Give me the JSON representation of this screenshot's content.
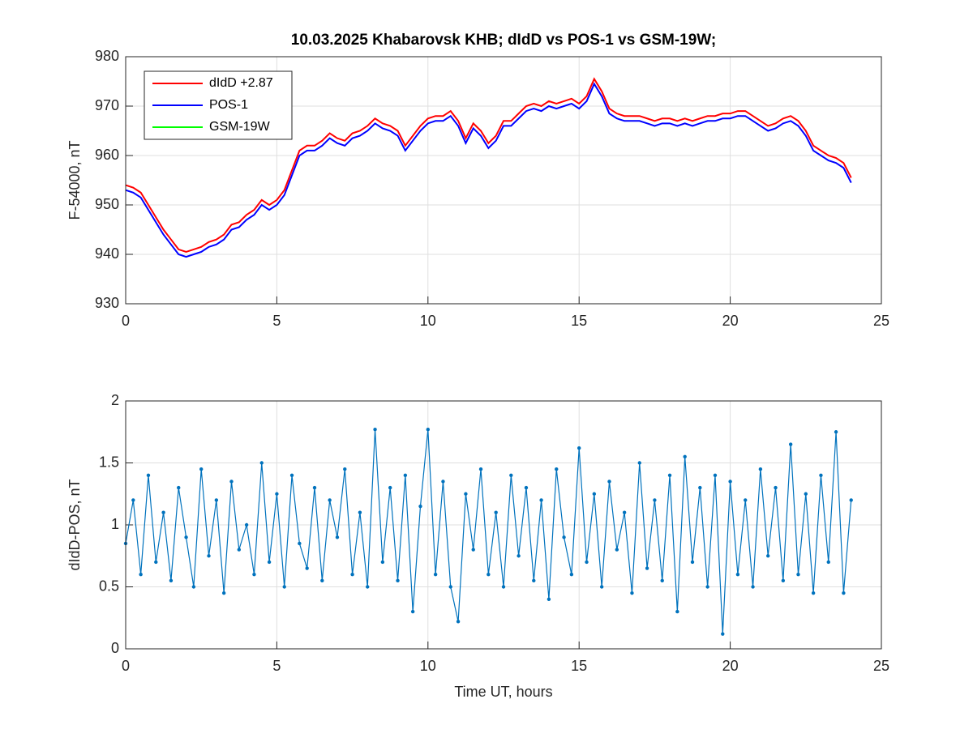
{
  "chart_data": [
    {
      "type": "line",
      "title": "10.03.2025  Khabarovsk KHB; dIdD vs POS-1 vs GSM-19W;",
      "ylabel": "F-54000, nT",
      "xlim": [
        0,
        25
      ],
      "xticks": [
        0,
        5,
        10,
        15,
        20,
        25
      ],
      "ylim": [
        930,
        980
      ],
      "yticks": [
        930,
        940,
        950,
        960,
        970,
        980
      ],
      "grid": true,
      "legend": "upper left",
      "x": [
        0,
        0.25,
        0.5,
        0.75,
        1,
        1.25,
        1.5,
        1.75,
        2,
        2.25,
        2.5,
        2.75,
        3,
        3.25,
        3.5,
        3.75,
        4,
        4.25,
        4.5,
        4.75,
        5,
        5.25,
        5.5,
        5.75,
        6,
        6.25,
        6.5,
        6.75,
        7,
        7.25,
        7.5,
        7.75,
        8,
        8.25,
        8.5,
        8.75,
        9,
        9.25,
        9.5,
        9.75,
        10,
        10.25,
        10.5,
        10.75,
        11,
        11.25,
        11.5,
        11.75,
        12,
        12.25,
        12.5,
        12.75,
        13,
        13.25,
        13.5,
        13.75,
        14,
        14.25,
        14.5,
        14.75,
        15,
        15.25,
        15.5,
        15.75,
        16,
        16.25,
        16.5,
        16.75,
        17,
        17.25,
        17.5,
        17.75,
        18,
        18.25,
        18.5,
        18.75,
        19,
        19.25,
        19.5,
        19.75,
        20,
        20.25,
        20.5,
        20.75,
        21,
        21.25,
        21.5,
        21.75,
        22,
        22.25,
        22.5,
        22.75,
        23,
        23.25,
        23.5,
        23.75,
        24
      ],
      "series": [
        {
          "name": "dIdD +2.87",
          "color": "#ff0000",
          "values": [
            954,
            953.5,
            952.5,
            950,
            947.5,
            945,
            943,
            941,
            940.5,
            941,
            941.5,
            942.5,
            943,
            944,
            946,
            946.5,
            948,
            949,
            951,
            950,
            951,
            953,
            957,
            961,
            962,
            962,
            963,
            964.5,
            963.5,
            963,
            964.5,
            965,
            966,
            967.5,
            966.5,
            966,
            965,
            962,
            964,
            966,
            967.5,
            968,
            968,
            969,
            967,
            963.5,
            966.5,
            965,
            962.5,
            964,
            967,
            967,
            968.5,
            970,
            970.5,
            970,
            971,
            970.5,
            971,
            971.5,
            970.5,
            972,
            975.5,
            973,
            969.5,
            968.5,
            968,
            968,
            968,
            967.5,
            967,
            967.5,
            967.5,
            967,
            967.5,
            967,
            967.5,
            968,
            968,
            968.5,
            968.5,
            969,
            969,
            968,
            967,
            966,
            966.5,
            967.5,
            968,
            967,
            965,
            962,
            961,
            960,
            959.5,
            958.5,
            955.5
          ]
        },
        {
          "name": "POS-1",
          "color": "#0000ff",
          "values": [
            953,
            952.5,
            951.5,
            949,
            946.5,
            944,
            942,
            940,
            939.5,
            940,
            940.5,
            941.5,
            942,
            943,
            945,
            945.5,
            947,
            948,
            950,
            949,
            950,
            952,
            956,
            960,
            961,
            961,
            962,
            963.5,
            962.5,
            962,
            963.5,
            964,
            965,
            966.5,
            965.5,
            965,
            964,
            961,
            963,
            965,
            966.5,
            967,
            967,
            968,
            966,
            962.5,
            965.5,
            964,
            961.5,
            963,
            966,
            966,
            967.5,
            969,
            969.5,
            969,
            970,
            969.5,
            970,
            970.5,
            969.5,
            971,
            974.5,
            972,
            968.5,
            967.5,
            967,
            967,
            967,
            966.5,
            966,
            966.5,
            966.5,
            966,
            966.5,
            966,
            966.5,
            967,
            967,
            967.5,
            967.5,
            968,
            968,
            967,
            966,
            965,
            965.5,
            966.5,
            967,
            966,
            964,
            961,
            960,
            959,
            958.5,
            957.5,
            954.5
          ]
        },
        {
          "name": "GSM-19W",
          "color": "#00ff00",
          "values": [
            null,
            null,
            null,
            null,
            null,
            null,
            null,
            null,
            null,
            null,
            null,
            null,
            null,
            null,
            null,
            null,
            null,
            null,
            null,
            null,
            null,
            null,
            null,
            null,
            null,
            null,
            null,
            null,
            null,
            null,
            null,
            null,
            null,
            null,
            null,
            null,
            null,
            null,
            null,
            null,
            null,
            null,
            null,
            null,
            null,
            null,
            null,
            null,
            null,
            null,
            null,
            null,
            null,
            null,
            null,
            null,
            null,
            null,
            null,
            null,
            null,
            null,
            null,
            null,
            null,
            null,
            null,
            null,
            null,
            null,
            null,
            null,
            null,
            null,
            null,
            null,
            null,
            null,
            null,
            null,
            null,
            null,
            null,
            null,
            null,
            null,
            null,
            null,
            null,
            null,
            null,
            null,
            null,
            null,
            null,
            null,
            null
          ]
        }
      ]
    },
    {
      "type": "line",
      "xlabel": "Time UT, hours",
      "ylabel": "dIdD-POS, nT",
      "xlim": [
        0,
        25
      ],
      "xticks": [
        0,
        5,
        10,
        15,
        20,
        25
      ],
      "ylim": [
        0,
        2
      ],
      "yticks": [
        0,
        0.5,
        1,
        1.5,
        2
      ],
      "grid": true,
      "marker": true,
      "x": [
        0,
        0.25,
        0.5,
        0.75,
        1,
        1.25,
        1.5,
        1.75,
        2,
        2.25,
        2.5,
        2.75,
        3,
        3.25,
        3.5,
        3.75,
        4,
        4.25,
        4.5,
        4.75,
        5,
        5.25,
        5.5,
        5.75,
        6,
        6.25,
        6.5,
        6.75,
        7,
        7.25,
        7.5,
        7.75,
        8,
        8.25,
        8.5,
        8.75,
        9,
        9.25,
        9.5,
        9.75,
        10,
        10.25,
        10.5,
        10.75,
        11,
        11.25,
        11.5,
        11.75,
        12,
        12.25,
        12.5,
        12.75,
        13,
        13.25,
        13.5,
        13.75,
        14,
        14.25,
        14.5,
        14.75,
        15,
        15.25,
        15.5,
        15.75,
        16,
        16.25,
        16.5,
        16.75,
        17,
        17.25,
        17.5,
        17.75,
        18,
        18.25,
        18.5,
        18.75,
        19,
        19.25,
        19.5,
        19.75,
        20,
        20.25,
        20.5,
        20.75,
        21,
        21.25,
        21.5,
        21.75,
        22,
        22.25,
        22.5,
        22.75,
        23,
        23.25,
        23.5,
        23.75,
        24
      ],
      "series": [
        {
          "name": "dIdD-POS",
          "color": "#0072bd",
          "values": [
            0.85,
            1.2,
            0.6,
            1.4,
            0.7,
            1.1,
            0.55,
            1.3,
            0.9,
            0.5,
            1.45,
            0.75,
            1.2,
            0.45,
            1.35,
            0.8,
            1.0,
            0.6,
            1.5,
            0.7,
            1.25,
            0.5,
            1.4,
            0.85,
            0.65,
            1.3,
            0.55,
            1.2,
            0.9,
            1.45,
            0.6,
            1.1,
            0.5,
            1.77,
            0.7,
            1.3,
            0.55,
            1.4,
            0.3,
            1.15,
            1.77,
            0.6,
            1.35,
            0.5,
            0.22,
            1.25,
            0.8,
            1.45,
            0.6,
            1.1,
            0.5,
            1.4,
            0.75,
            1.3,
            0.55,
            1.2,
            0.4,
            1.45,
            0.9,
            0.6,
            1.62,
            0.7,
            1.25,
            0.5,
            1.35,
            0.8,
            1.1,
            0.45,
            1.5,
            0.65,
            1.2,
            0.55,
            1.4,
            0.3,
            1.55,
            0.7,
            1.3,
            0.5,
            1.4,
            0.12,
            1.35,
            0.6,
            1.2,
            0.5,
            1.45,
            0.75,
            1.3,
            0.55,
            1.65,
            0.6,
            1.25,
            0.45,
            1.4,
            0.7,
            1.75,
            0.45,
            1.2
          ]
        }
      ]
    }
  ]
}
